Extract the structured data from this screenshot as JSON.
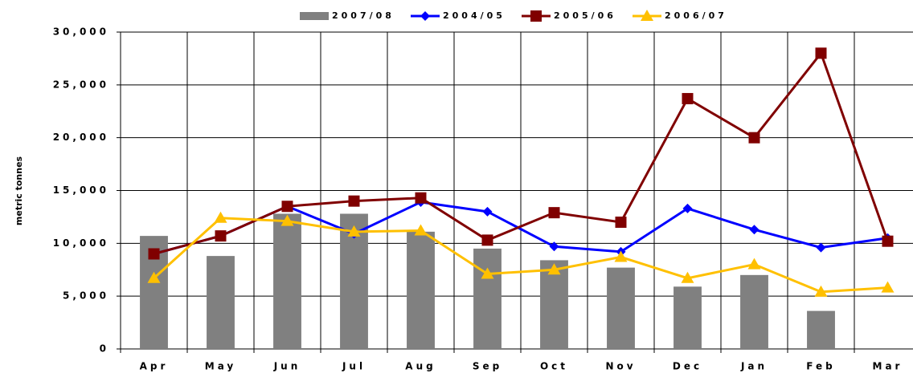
{
  "chart_data": {
    "type": "bar-line",
    "y_label": "metric tonnes",
    "categories": [
      "Apr",
      "May",
      "Jun",
      "Jul",
      "Aug",
      "Sep",
      "Oct",
      "Nov",
      "Dec",
      "Jan",
      "Feb",
      "Mar"
    ],
    "series": [
      {
        "name": "2007/08",
        "type": "bar",
        "color": "#808080",
        "values": [
          10700,
          8800,
          12800,
          12800,
          11100,
          9500,
          8400,
          7700,
          5900,
          7000,
          3600,
          null
        ]
      },
      {
        "name": "2004/05",
        "type": "line",
        "marker": "diamond",
        "color": "#0000ff",
        "values": [
          9000,
          10700,
          13500,
          10900,
          13900,
          13000,
          9700,
          9200,
          13300,
          11300,
          9600,
          10500
        ]
      },
      {
        "name": "2005/06",
        "type": "line",
        "marker": "square",
        "color": "#800000",
        "values": [
          9000,
          10700,
          13500,
          14000,
          14300,
          10300,
          12900,
          12000,
          23700,
          20000,
          28000,
          10200
        ]
      },
      {
        "name": "2006/07",
        "type": "line",
        "marker": "triangle",
        "color": "#ffc000",
        "values": [
          6700,
          12400,
          12100,
          11100,
          11200,
          7100,
          7500,
          8700,
          6700,
          8000,
          5400,
          5800
        ]
      }
    ],
    "ylim": [
      0,
      30000
    ],
    "yticks": [
      0,
      {
        "value": 5000,
        "label": "5,000"
      },
      {
        "value": 10000,
        "label": "10,000"
      },
      {
        "value": 15000,
        "label": "15,000"
      },
      {
        "value": 20000,
        "label": "20,000"
      },
      {
        "value": 25000,
        "label": "25,000"
      },
      {
        "value": 30000,
        "label": "30,000"
      }
    ],
    "grid": true
  }
}
